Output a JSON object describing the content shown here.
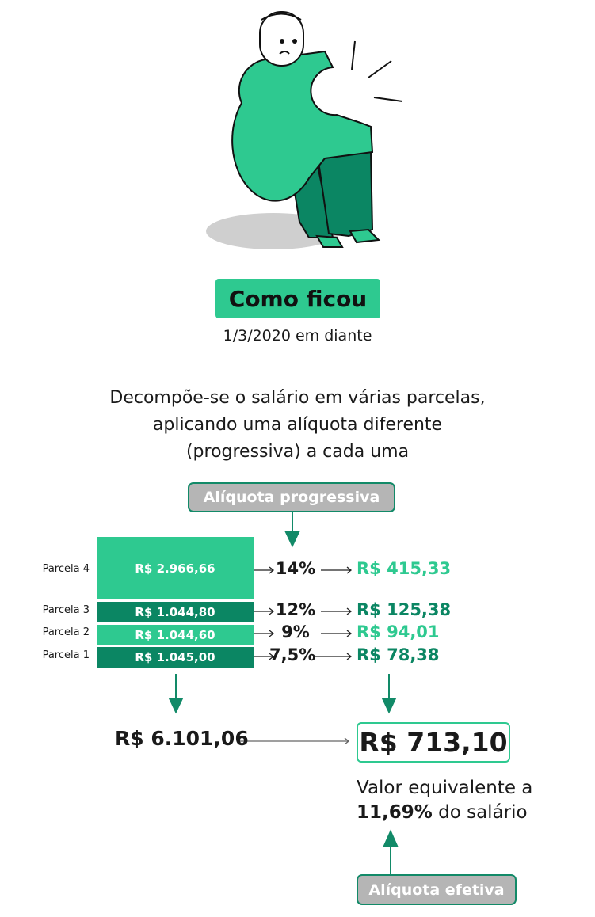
{
  "colors": {
    "light_green": "#2ec990",
    "dark_green": "#0b8663",
    "badge_gray": "#b5b5b5"
  },
  "header": {
    "badge": "Como ficou",
    "date": "1/3/2020 em diante"
  },
  "description": [
    "Decompõe-se o salário em várias parcelas,",
    "aplicando uma alíquota diferente",
    "(progressiva) a cada uma"
  ],
  "progressive_label": "Alíquota progressiva",
  "parcels": [
    {
      "label": "Parcela 4",
      "amount": "R$ 2.966,66",
      "rate": "14%",
      "tax": "R$ 415,33",
      "color": "light"
    },
    {
      "label": "Parcela 3",
      "amount": "R$ 1.044,80",
      "rate": "12%",
      "tax": "R$ 125,38",
      "color": "dark"
    },
    {
      "label": "Parcela 2",
      "amount": "R$ 1.044,60",
      "rate": "9%",
      "tax": "R$ 94,01",
      "color": "light"
    },
    {
      "label": "Parcela 1",
      "amount": "R$ 1.045,00",
      "rate": "7,5%",
      "tax": "R$ 78,38",
      "color": "dark"
    }
  ],
  "total_salary": "R$ 6.101,06",
  "total_tax": "R$ 713,10",
  "summary": {
    "line1": "Valor equivalente a",
    "pct": "11,69%",
    "rest": " do salário"
  },
  "effective_label": "Alíquota efetiva"
}
